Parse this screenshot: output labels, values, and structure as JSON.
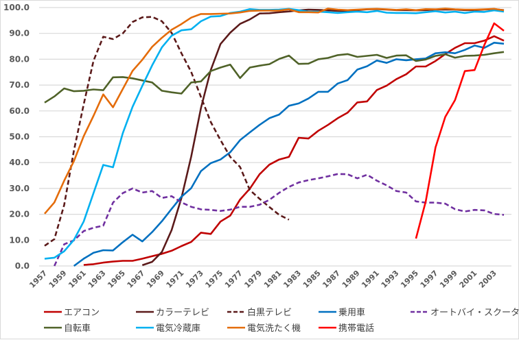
{
  "chart_data": {
    "type": "line",
    "title": "",
    "xlabel": "",
    "ylabel": "",
    "ylim": [
      0,
      100
    ],
    "yticks": [
      "0.0",
      "10.0",
      "20.0",
      "30.0",
      "40.0",
      "50.0",
      "60.0",
      "70.0",
      "80.0",
      "90.0",
      "100.0"
    ],
    "grid": true,
    "legend_position": "bottom",
    "x": [
      1957,
      1958,
      1959,
      1960,
      1961,
      1962,
      1963,
      1964,
      1965,
      1966,
      1967,
      1968,
      1969,
      1970,
      1971,
      1972,
      1973,
      1974,
      1975,
      1976,
      1977,
      1978,
      1979,
      1980,
      1981,
      1982,
      1983,
      1984,
      1985,
      1986,
      1987,
      1988,
      1989,
      1990,
      1991,
      1992,
      1993,
      1994,
      1995,
      1996,
      1997,
      1998,
      1999,
      2000,
      2001,
      2002,
      2003,
      2004
    ],
    "xtick_labels": [
      "1957",
      "1959",
      "1961",
      "1963",
      "1965",
      "1967",
      "1969",
      "1971",
      "1973",
      "1975",
      "1977",
      "1979",
      "1981",
      "1983",
      "1985",
      "1987",
      "1989",
      "1991",
      "1993",
      "1995",
      "1997",
      "1999",
      "2001",
      "2003"
    ],
    "series": [
      {
        "name": "エアコン",
        "color": "#C00000",
        "dash": false,
        "values": [
          null,
          null,
          null,
          null,
          0.4,
          0.7,
          1.3,
          1.7,
          2.0,
          2.0,
          2.8,
          3.8,
          4.7,
          5.9,
          7.7,
          9.3,
          12.9,
          12.4,
          17.2,
          19.5,
          25.7,
          29.9,
          35.5,
          39.2,
          41.2,
          42.2,
          49.6,
          49.3,
          52.3,
          54.6,
          57.2,
          59.3,
          63.3,
          63.7,
          68.1,
          69.8,
          72.3,
          74.2,
          77.2,
          77.2,
          79.3,
          82.0,
          84.4,
          86.2,
          86.2,
          87.2,
          88.9,
          87.2
        ]
      },
      {
        "name": "カラーテレビ",
        "color": "#5B1A1A",
        "dash": false,
        "values": [
          null,
          null,
          null,
          null,
          null,
          null,
          null,
          null,
          null,
          null,
          0.3,
          1.6,
          5.4,
          13.9,
          26.3,
          42.3,
          61.1,
          75.8,
          85.9,
          90.3,
          93.7,
          95.4,
          97.7,
          97.8,
          98.2,
          98.5,
          98.9,
          99.2,
          99.1,
          98.9,
          98.7,
          98.7,
          99.0,
          99.3,
          99.4,
          99.2,
          99.0,
          99.0,
          98.9,
          99.0,
          99.2,
          99.2,
          99.2,
          99.0,
          99.0,
          99.2,
          99.4,
          99.0
        ]
      },
      {
        "name": "白黒テレビ",
        "color": "#5B1A1A",
        "dash": true,
        "values": [
          7.8,
          10.4,
          23.6,
          44.7,
          62.5,
          79.4,
          88.7,
          87.8,
          90.0,
          94.4,
          96.2,
          96.4,
          94.7,
          90.2,
          82.3,
          75.1,
          65.4,
          55.7,
          48.7,
          42.2,
          38.3,
          29.4,
          26.0,
          22.8,
          19.8,
          17.9,
          null,
          null,
          null,
          null,
          null,
          null,
          null,
          null,
          null,
          null,
          null,
          null,
          null,
          null,
          null,
          null,
          null,
          null,
          null,
          null,
          null,
          null
        ]
      },
      {
        "name": "乗用車",
        "color": "#0070C0",
        "dash": false,
        "values": [
          null,
          null,
          null,
          0,
          2.8,
          5.1,
          6.1,
          6.0,
          9.2,
          12.1,
          9.5,
          13.1,
          17.3,
          22.1,
          26.8,
          30.1,
          36.7,
          39.8,
          41.2,
          44.0,
          48.7,
          51.7,
          54.6,
          57.2,
          58.6,
          62.0,
          62.9,
          64.8,
          67.4,
          67.4,
          70.6,
          71.9,
          76.0,
          77.3,
          79.5,
          78.6,
          80.0,
          79.6,
          80.0,
          80.3,
          82.3,
          82.7,
          82.3,
          83.6,
          85.3,
          84.4,
          86.4,
          86.0
        ]
      },
      {
        "name": "オートバイ・スクーター",
        "color": "#7030A0",
        "dash": true,
        "values": [
          null,
          0,
          8.4,
          9.9,
          13.5,
          14.8,
          15.6,
          24.5,
          28.2,
          30.0,
          28.4,
          29.0,
          26.3,
          27.0,
          24.6,
          22.9,
          21.9,
          21.7,
          21.3,
          21.8,
          22.9,
          22.9,
          23.7,
          25.6,
          28.3,
          30.6,
          32.3,
          33.2,
          33.9,
          34.7,
          35.6,
          35.5,
          33.9,
          35.3,
          33.0,
          31.2,
          29.0,
          28.4,
          25.0,
          24.5,
          24.5,
          24.1,
          22.0,
          21.1,
          21.7,
          21.5,
          20.1,
          19.8
        ]
      },
      {
        "name": "自転車",
        "color": "#4F6228",
        "dash": false,
        "values": [
          63.2,
          65.6,
          68.7,
          67.6,
          67.8,
          68.3,
          68.0,
          73.0,
          73.1,
          72.6,
          71.8,
          71.0,
          67.8,
          67.2,
          66.7,
          71.0,
          71.4,
          75.4,
          76.8,
          77.9,
          72.7,
          76.8,
          77.5,
          78.1,
          80.1,
          81.4,
          78.2,
          78.3,
          80.0,
          80.5,
          81.6,
          82.0,
          80.9,
          81.3,
          81.7,
          80.5,
          81.4,
          81.5,
          79.3,
          79.9,
          81.3,
          81.9,
          80.6,
          81.3,
          81.4,
          81.7,
          82.3,
          82.8
        ]
      },
      {
        "name": "電気冷蔵庫",
        "color": "#00B0F0",
        "dash": false,
        "values": [
          2.8,
          3.2,
          5.7,
          10.1,
          17.2,
          28.2,
          39.1,
          38.2,
          51.4,
          61.6,
          69.7,
          77.6,
          84.6,
          89.1,
          91.2,
          91.6,
          94.7,
          96.5,
          96.7,
          97.9,
          98.4,
          99.4,
          99.1,
          99.1,
          99.2,
          99.5,
          99.0,
          98.4,
          98.4,
          98.2,
          97.9,
          98.2,
          98.4,
          98.2,
          98.7,
          98.0,
          97.9,
          97.9,
          97.8,
          98.2,
          98.6,
          98.1,
          98.4,
          97.9,
          98.4,
          98.3,
          98.9,
          98.4
        ]
      },
      {
        "name": "電気洗たく機",
        "color": "#E46C0A",
        "dash": false,
        "values": [
          20.2,
          24.6,
          33.0,
          40.6,
          50.2,
          58.1,
          66.4,
          61.4,
          68.5,
          75.5,
          79.8,
          84.8,
          88.3,
          91.4,
          93.6,
          96.1,
          97.5,
          97.5,
          97.6,
          97.7,
          98.1,
          98.7,
          98.8,
          98.8,
          98.8,
          99.3,
          98.2,
          98.2,
          98.1,
          99.6,
          99.2,
          99.0,
          99.2,
          99.4,
          99.5,
          99.3,
          99.1,
          99.3,
          99.0,
          99.4,
          99.3,
          99.6,
          99.3,
          99.2,
          99.2,
          99.3,
          99.5,
          98.9
        ]
      },
      {
        "name": "携帯電話",
        "color": "#FF0000",
        "dash": false,
        "values": [
          null,
          null,
          null,
          null,
          null,
          null,
          null,
          null,
          null,
          null,
          null,
          null,
          null,
          null,
          null,
          null,
          null,
          null,
          null,
          null,
          null,
          null,
          null,
          null,
          null,
          null,
          null,
          null,
          null,
          null,
          null,
          null,
          null,
          null,
          null,
          null,
          null,
          null,
          10.6,
          24.9,
          45.9,
          57.7,
          64.2,
          75.4,
          75.8,
          85.5,
          93.9,
          91.0
        ]
      }
    ]
  }
}
